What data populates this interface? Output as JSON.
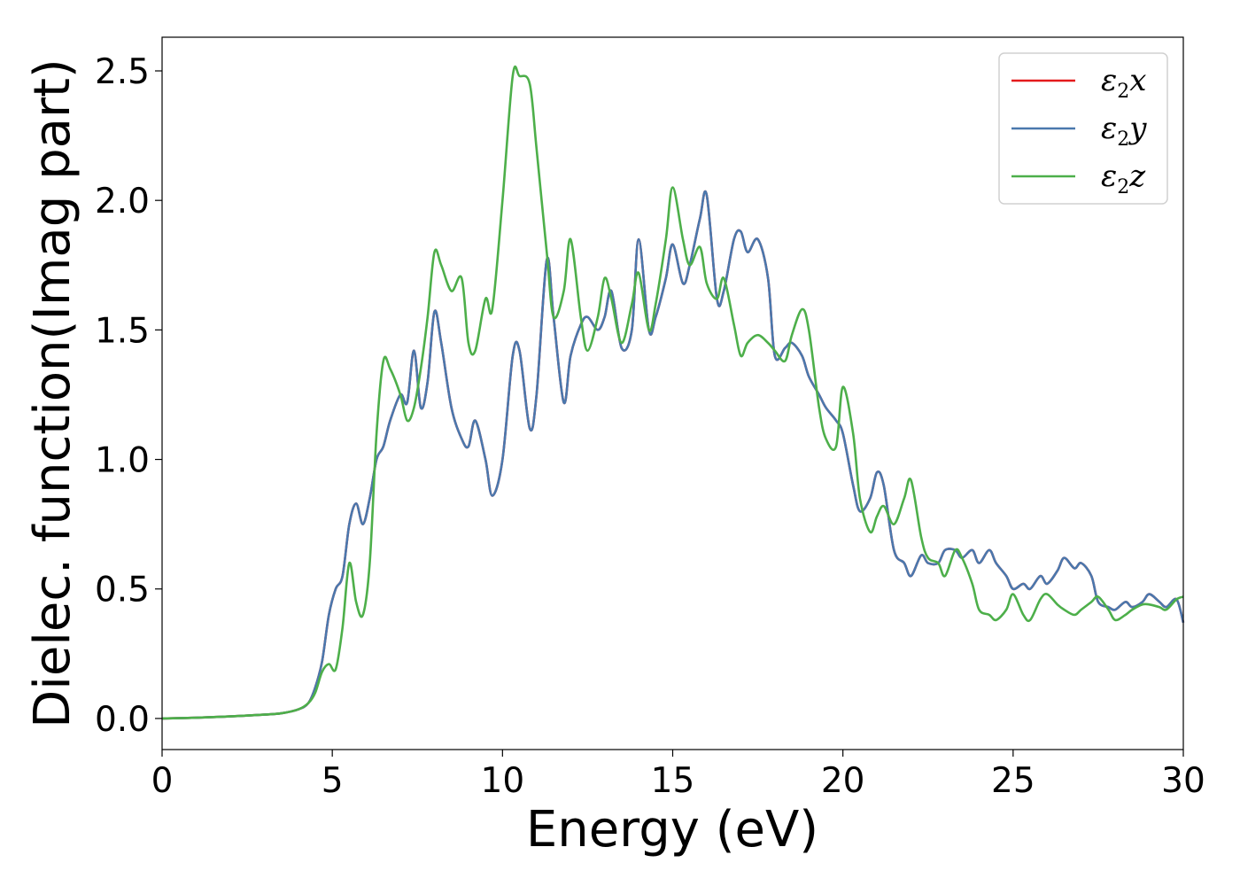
{
  "chart_data": {
    "type": "line",
    "title": "",
    "xlabel": "Energy (eV)",
    "ylabel": "Dielec. function(Imag part)",
    "xlim": [
      0,
      30
    ],
    "ylim": [
      -0.12,
      2.63
    ],
    "xticks": [
      "0",
      "5",
      "10",
      "15",
      "20",
      "25",
      "30"
    ],
    "yticks": [
      "0.0",
      "0.5",
      "1.0",
      "1.5",
      "2.0",
      "2.5"
    ],
    "grid": false,
    "legend_position": "top-right",
    "series": [
      {
        "name": "ε₂x",
        "label_base": "ε",
        "label_sub": "2",
        "label_var": "x",
        "color": "#e41a1c",
        "x": [
          0,
          1,
          2,
          3,
          3.5,
          4,
          4.3,
          4.5,
          4.7,
          4.9,
          5.1,
          5.3,
          5.5,
          5.7,
          5.9,
          6.1,
          6.3,
          6.5,
          6.7,
          7.0,
          7.2,
          7.4,
          7.6,
          7.8,
          8.0,
          8.2,
          8.5,
          8.8,
          9.0,
          9.2,
          9.5,
          9.7,
          10.0,
          10.3,
          10.5,
          10.8,
          11.0,
          11.3,
          11.5,
          11.8,
          12.0,
          12.3,
          12.5,
          12.8,
          13.0,
          13.2,
          13.5,
          13.8,
          14.0,
          14.3,
          14.5,
          14.8,
          15.0,
          15.3,
          15.5,
          15.8,
          16.0,
          16.3,
          16.5,
          16.8,
          17.0,
          17.2,
          17.5,
          17.8,
          18.0,
          18.3,
          18.5,
          18.8,
          19.0,
          19.3,
          19.5,
          19.8,
          20.0,
          20.3,
          20.5,
          20.8,
          21.0,
          21.2,
          21.5,
          21.8,
          22.0,
          22.3,
          22.5,
          22.8,
          23.0,
          23.3,
          23.5,
          23.8,
          24.0,
          24.3,
          24.5,
          24.8,
          25.0,
          25.3,
          25.5,
          25.8,
          26.0,
          26.3,
          26.5,
          26.8,
          27.0,
          27.3,
          27.5,
          27.8,
          28.0,
          28.3,
          28.5,
          28.8,
          29.0,
          29.3,
          29.5,
          29.8,
          30.0
        ],
        "y": [
          0.0,
          0.003,
          0.008,
          0.015,
          0.02,
          0.035,
          0.06,
          0.12,
          0.22,
          0.4,
          0.5,
          0.55,
          0.75,
          0.83,
          0.75,
          0.85,
          1.0,
          1.05,
          1.15,
          1.25,
          1.22,
          1.42,
          1.2,
          1.3,
          1.57,
          1.45,
          1.2,
          1.08,
          1.05,
          1.15,
          1.0,
          0.86,
          1.0,
          1.4,
          1.42,
          1.12,
          1.25,
          1.77,
          1.55,
          1.22,
          1.4,
          1.52,
          1.55,
          1.5,
          1.55,
          1.65,
          1.43,
          1.5,
          1.85,
          1.5,
          1.55,
          1.7,
          1.83,
          1.68,
          1.75,
          1.93,
          2.02,
          1.62,
          1.65,
          1.85,
          1.88,
          1.8,
          1.85,
          1.7,
          1.4,
          1.43,
          1.45,
          1.4,
          1.32,
          1.25,
          1.2,
          1.15,
          1.1,
          0.9,
          0.8,
          0.85,
          0.95,
          0.9,
          0.65,
          0.6,
          0.55,
          0.63,
          0.6,
          0.6,
          0.65,
          0.65,
          0.62,
          0.65,
          0.6,
          0.65,
          0.6,
          0.55,
          0.5,
          0.52,
          0.5,
          0.55,
          0.52,
          0.57,
          0.62,
          0.58,
          0.6,
          0.55,
          0.45,
          0.43,
          0.42,
          0.45,
          0.43,
          0.45,
          0.48,
          0.45,
          0.43,
          0.46,
          0.37
        ]
      },
      {
        "name": "ε₂y",
        "label_base": "ε",
        "label_sub": "2",
        "label_var": "y",
        "color": "#4a78ad",
        "x": [
          0,
          1,
          2,
          3,
          3.5,
          4,
          4.3,
          4.5,
          4.7,
          4.9,
          5.1,
          5.3,
          5.5,
          5.7,
          5.9,
          6.1,
          6.3,
          6.5,
          6.7,
          7.0,
          7.2,
          7.4,
          7.6,
          7.8,
          8.0,
          8.2,
          8.5,
          8.8,
          9.0,
          9.2,
          9.5,
          9.7,
          10.0,
          10.3,
          10.5,
          10.8,
          11.0,
          11.3,
          11.5,
          11.8,
          12.0,
          12.3,
          12.5,
          12.8,
          13.0,
          13.2,
          13.5,
          13.8,
          14.0,
          14.3,
          14.5,
          14.8,
          15.0,
          15.3,
          15.5,
          15.8,
          16.0,
          16.3,
          16.5,
          16.8,
          17.0,
          17.2,
          17.5,
          17.8,
          18.0,
          18.3,
          18.5,
          18.8,
          19.0,
          19.3,
          19.5,
          19.8,
          20.0,
          20.3,
          20.5,
          20.8,
          21.0,
          21.2,
          21.5,
          21.8,
          22.0,
          22.3,
          22.5,
          22.8,
          23.0,
          23.3,
          23.5,
          23.8,
          24.0,
          24.3,
          24.5,
          24.8,
          25.0,
          25.3,
          25.5,
          25.8,
          26.0,
          26.3,
          26.5,
          26.8,
          27.0,
          27.3,
          27.5,
          27.8,
          28.0,
          28.3,
          28.5,
          28.8,
          29.0,
          29.3,
          29.5,
          29.8,
          30.0
        ],
        "y": [
          0.0,
          0.003,
          0.008,
          0.015,
          0.02,
          0.035,
          0.06,
          0.12,
          0.22,
          0.4,
          0.5,
          0.55,
          0.75,
          0.83,
          0.75,
          0.85,
          1.0,
          1.05,
          1.15,
          1.25,
          1.22,
          1.42,
          1.2,
          1.3,
          1.57,
          1.45,
          1.2,
          1.08,
          1.05,
          1.15,
          1.0,
          0.86,
          1.0,
          1.4,
          1.42,
          1.12,
          1.25,
          1.77,
          1.55,
          1.22,
          1.4,
          1.52,
          1.55,
          1.5,
          1.55,
          1.65,
          1.43,
          1.5,
          1.85,
          1.5,
          1.55,
          1.7,
          1.83,
          1.68,
          1.75,
          1.93,
          2.02,
          1.62,
          1.65,
          1.85,
          1.88,
          1.8,
          1.85,
          1.7,
          1.4,
          1.43,
          1.45,
          1.4,
          1.32,
          1.25,
          1.2,
          1.15,
          1.1,
          0.9,
          0.8,
          0.85,
          0.95,
          0.9,
          0.65,
          0.6,
          0.55,
          0.63,
          0.6,
          0.6,
          0.65,
          0.65,
          0.62,
          0.65,
          0.6,
          0.65,
          0.6,
          0.55,
          0.5,
          0.52,
          0.5,
          0.55,
          0.52,
          0.57,
          0.62,
          0.58,
          0.6,
          0.55,
          0.45,
          0.43,
          0.42,
          0.45,
          0.43,
          0.45,
          0.48,
          0.45,
          0.43,
          0.46,
          0.37
        ]
      },
      {
        "name": "ε₂z",
        "label_base": "ε",
        "label_sub": "2",
        "label_var": "z",
        "color": "#4daf4a",
        "x": [
          0,
          1,
          2,
          3,
          3.5,
          4,
          4.3,
          4.5,
          4.7,
          4.9,
          5.1,
          5.3,
          5.5,
          5.7,
          5.9,
          6.1,
          6.3,
          6.5,
          6.7,
          7.0,
          7.2,
          7.4,
          7.6,
          7.8,
          8.0,
          8.2,
          8.5,
          8.8,
          9.0,
          9.2,
          9.5,
          9.7,
          10.0,
          10.3,
          10.5,
          10.8,
          11.0,
          11.3,
          11.5,
          11.8,
          12.0,
          12.3,
          12.5,
          12.8,
          13.0,
          13.2,
          13.5,
          13.8,
          14.0,
          14.3,
          14.5,
          14.8,
          15.0,
          15.3,
          15.5,
          15.8,
          16.0,
          16.3,
          16.5,
          16.8,
          17.0,
          17.2,
          17.5,
          17.8,
          18.0,
          18.3,
          18.5,
          18.8,
          19.0,
          19.3,
          19.5,
          19.8,
          20.0,
          20.3,
          20.5,
          20.8,
          21.0,
          21.2,
          21.5,
          21.8,
          22.0,
          22.3,
          22.5,
          22.8,
          23.0,
          23.3,
          23.5,
          23.8,
          24.0,
          24.3,
          24.5,
          24.8,
          25.0,
          25.3,
          25.5,
          25.8,
          26.0,
          26.3,
          26.5,
          26.8,
          27.0,
          27.3,
          27.5,
          27.8,
          28.0,
          28.3,
          28.5,
          28.8,
          29.0,
          29.3,
          29.5,
          29.8,
          30.0
        ],
        "y": [
          0.0,
          0.003,
          0.008,
          0.015,
          0.02,
          0.035,
          0.06,
          0.1,
          0.18,
          0.21,
          0.19,
          0.35,
          0.6,
          0.45,
          0.4,
          0.6,
          1.1,
          1.38,
          1.35,
          1.25,
          1.15,
          1.2,
          1.35,
          1.55,
          1.8,
          1.75,
          1.65,
          1.7,
          1.45,
          1.42,
          1.62,
          1.58,
          2.0,
          2.48,
          2.48,
          2.45,
          2.2,
          1.8,
          1.55,
          1.65,
          1.85,
          1.55,
          1.42,
          1.55,
          1.7,
          1.62,
          1.45,
          1.6,
          1.72,
          1.5,
          1.6,
          1.85,
          2.05,
          1.85,
          1.75,
          1.82,
          1.68,
          1.62,
          1.7,
          1.52,
          1.4,
          1.45,
          1.48,
          1.45,
          1.42,
          1.38,
          1.48,
          1.58,
          1.5,
          1.2,
          1.08,
          1.05,
          1.28,
          1.1,
          0.85,
          0.72,
          0.78,
          0.82,
          0.75,
          0.85,
          0.92,
          0.7,
          0.62,
          0.6,
          0.55,
          0.65,
          0.62,
          0.52,
          0.42,
          0.4,
          0.38,
          0.42,
          0.48,
          0.4,
          0.38,
          0.46,
          0.48,
          0.44,
          0.42,
          0.4,
          0.42,
          0.45,
          0.47,
          0.42,
          0.38,
          0.4,
          0.42,
          0.44,
          0.44,
          0.43,
          0.42,
          0.46,
          0.47
        ]
      }
    ]
  }
}
